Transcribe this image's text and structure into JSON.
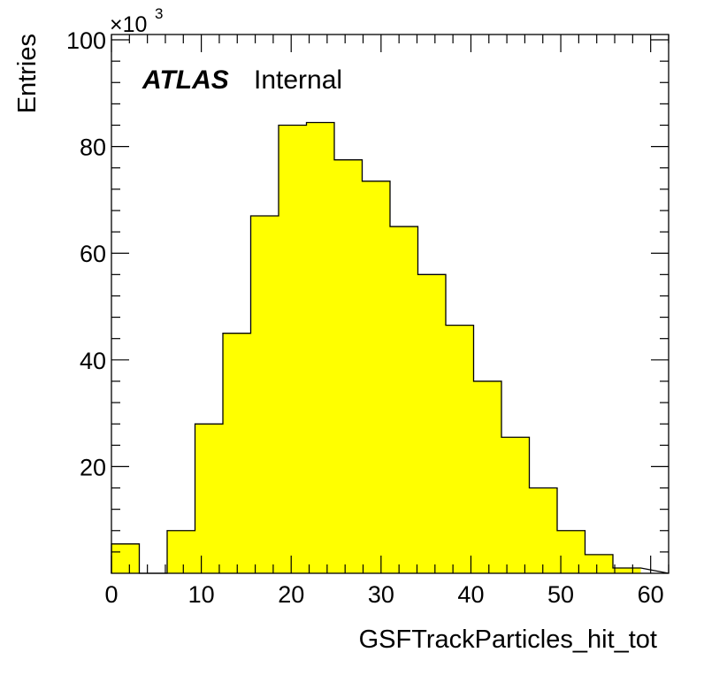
{
  "chart_data": {
    "type": "bar",
    "style": "histogram",
    "xlabel": "GSFTrackParticles_hit_tot",
    "ylabel": "Entries",
    "y_multiplier": "×10",
    "y_multiplier_exponent": "3",
    "label_bold": "ATLAS",
    "label_status": "Internal",
    "xlim": [
      0,
      62
    ],
    "ylim": [
      0,
      101
    ],
    "x_ticks": [
      0,
      10,
      20,
      30,
      40,
      50,
      60
    ],
    "y_ticks": [
      20,
      40,
      60,
      80,
      100
    ],
    "bin_width": 3.1,
    "bin_edges": [
      0,
      3.1,
      6.2,
      9.3,
      12.4,
      15.5,
      18.6,
      21.7,
      24.8,
      27.9,
      31.0,
      34.1,
      37.2,
      40.3,
      43.4,
      46.5,
      49.6,
      52.7,
      55.8,
      58.9
    ],
    "values": [
      5.5,
      0,
      8,
      28,
      45,
      67,
      84,
      84.5,
      77.5,
      73.5,
      65,
      56,
      46.5,
      36,
      25.5,
      16,
      8,
      3.5,
      1
    ],
    "fill_color": "#ffff00",
    "line_color": "#000000",
    "grid": false,
    "legend": "none"
  }
}
